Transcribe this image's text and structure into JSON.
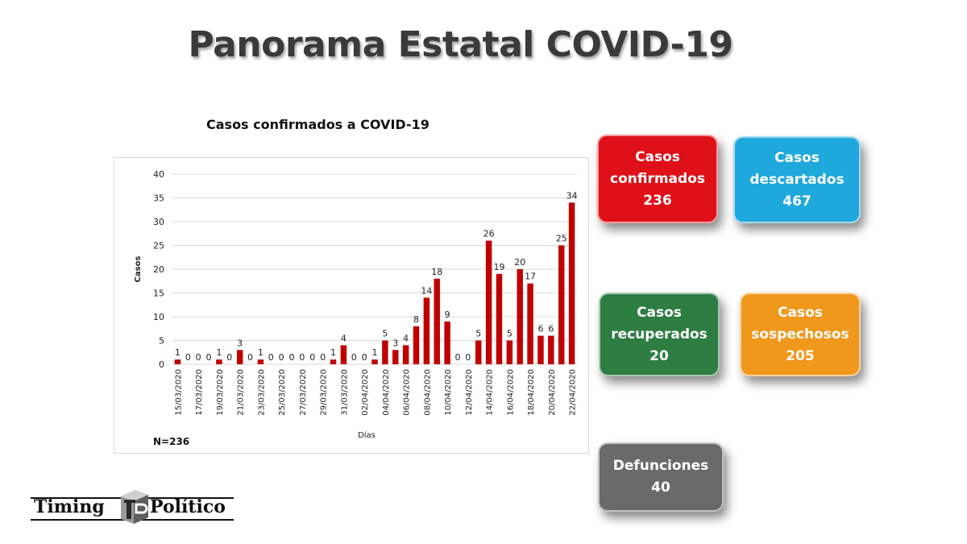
{
  "page": {
    "title": "Panorama Estatal COVID-19"
  },
  "chart_data": {
    "type": "bar",
    "title": "Casos confirmados a COVID-19",
    "xlabel": "Días",
    "ylabel": "Casos",
    "ylim": [
      0,
      40
    ],
    "yticks": [
      0,
      5,
      10,
      15,
      20,
      25,
      30,
      35,
      40
    ],
    "grid": true,
    "note": "N=236",
    "bar_color": "#c00000",
    "categories": [
      "15/03/2020",
      "16/03/2020",
      "17/03/2020",
      "18/03/2020",
      "19/03/2020",
      "20/03/2020",
      "21/03/2020",
      "22/03/2020",
      "23/03/2020",
      "24/03/2020",
      "25/03/2020",
      "26/03/2020",
      "27/03/2020",
      "28/03/2020",
      "29/03/2020",
      "30/03/2020",
      "31/03/2020",
      "01/04/2020",
      "02/04/2020",
      "03/04/2020",
      "04/04/2020",
      "05/04/2020",
      "06/04/2020",
      "07/04/2020",
      "08/04/2020",
      "09/04/2020",
      "10/04/2020",
      "11/04/2020",
      "12/04/2020",
      "13/04/2020",
      "14/04/2020",
      "15/04/2020",
      "16/04/2020",
      "17/04/2020",
      "18/04/2020",
      "19/04/2020",
      "20/04/2020",
      "21/04/2020",
      "22/04/2020"
    ],
    "tick_labels": [
      "15/03/2020",
      "",
      "17/03/2020",
      "",
      "19/03/2020",
      "",
      "21/03/2020",
      "",
      "23/03/2020",
      "",
      "25/03/2020",
      "",
      "27/03/2020",
      "",
      "29/03/2020",
      "",
      "31/03/2020",
      "",
      "02/04/2020",
      "",
      "04/04/2020",
      "",
      "06/04/2020",
      "",
      "08/04/2020",
      "",
      "10/04/2020",
      "",
      "12/04/2020",
      "",
      "14/04/2020",
      "",
      "16/04/2020",
      "",
      "18/04/2020",
      "",
      "20/04/2020",
      "",
      "22/04/2020"
    ],
    "values": [
      1,
      0,
      0,
      0,
      1,
      0,
      3,
      0,
      1,
      0,
      0,
      0,
      0,
      0,
      0,
      1,
      4,
      0,
      0,
      1,
      5,
      3,
      4,
      8,
      14,
      18,
      9,
      0,
      0,
      5,
      26,
      19,
      5,
      20,
      17,
      6,
      6,
      25,
      34
    ]
  },
  "cards": {
    "confirmados": {
      "line1": "Casos",
      "line2": "confirmados",
      "value": "236",
      "color": "#e01018"
    },
    "descartados": {
      "line1": "Casos",
      "line2": "descartados",
      "value": "467",
      "color": "#1fa8dc"
    },
    "recuperados": {
      "line1": "Casos",
      "line2": "recuperados",
      "value": "20",
      "color": "#2e7d43"
    },
    "sospechosos": {
      "line1": "Casos",
      "line2": "sospechosos",
      "value": "205",
      "color": "#f0981c"
    },
    "defunciones": {
      "line1": "Defunciones",
      "value": "40",
      "color": "#6a6a6a"
    }
  },
  "logo": {
    "word1": "Timing",
    "word2": "Político",
    "icon": "tp-logo-mark-icon"
  }
}
